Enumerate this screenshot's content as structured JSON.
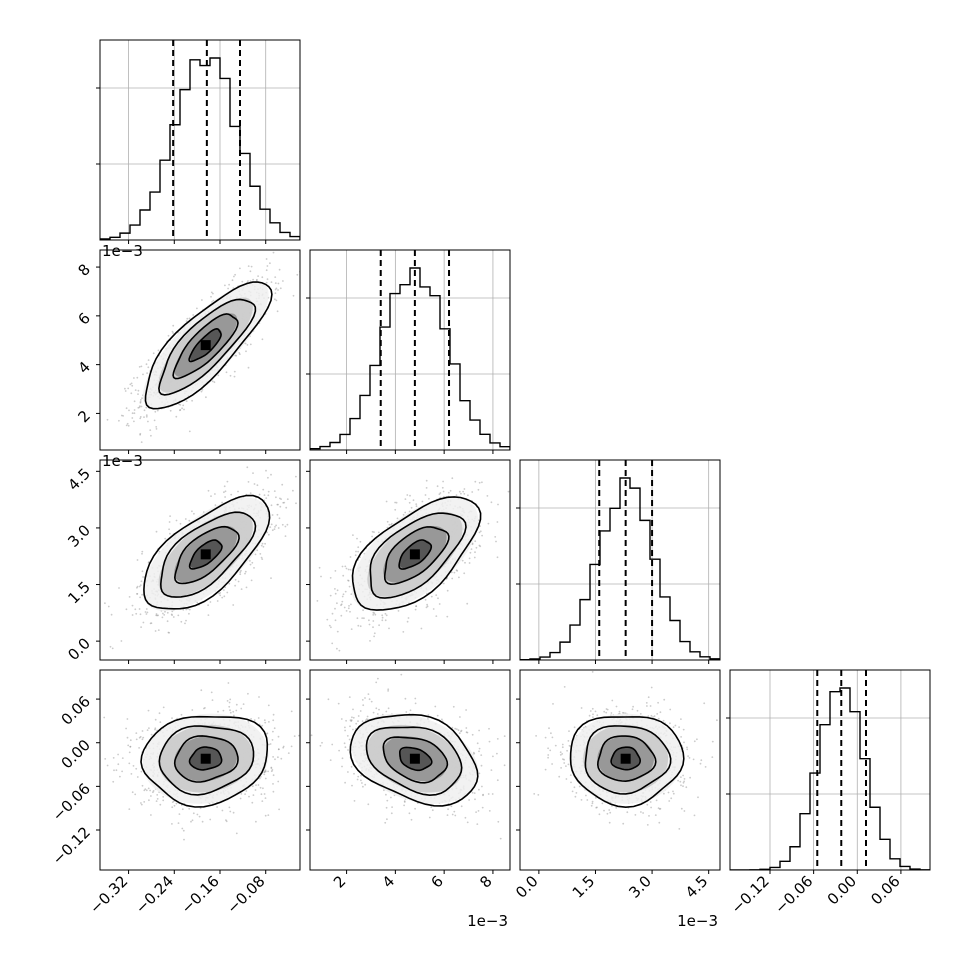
{
  "chart_data": {
    "type": "corner",
    "parameters": [
      {
        "range": [
          -0.37,
          -0.02
        ],
        "ticks": [
          -0.32,
          -0.24,
          -0.16,
          -0.08
        ],
        "tick_labels": [
          "−0.32",
          "−0.24",
          "−0.16",
          "−0.08"
        ],
        "offset_text": "",
        "mean": -0.185,
        "sd": 0.055,
        "quantiles": [
          -0.242,
          -0.183,
          -0.125
        ]
      },
      {
        "range": [
          0.0005,
          0.0087
        ],
        "ticks": [
          0.002,
          0.004,
          0.006,
          0.008
        ],
        "tick_labels": [
          "2",
          "4",
          "6",
          "8"
        ],
        "offset_text": "1e−3",
        "mean": 0.0048,
        "sd": 0.0013,
        "quantiles": [
          0.0034,
          0.0048,
          0.0062
        ]
      },
      {
        "range": [
          -0.0005,
          0.0048
        ],
        "ticks": [
          0.0,
          0.0015,
          0.003,
          0.0045
        ],
        "tick_labels": [
          "0.0",
          "1.5",
          "3.0",
          "4.5"
        ],
        "offset_text": "1e−3",
        "mean": 0.0023,
        "sd": 0.00075,
        "quantiles": [
          0.0016,
          0.0023,
          0.003
        ]
      },
      {
        "range": [
          -0.175,
          0.1
        ],
        "ticks": [
          -0.12,
          -0.06,
          0.0,
          0.06
        ],
        "tick_labels": [
          "−0.12",
          "−0.06",
          "0.00",
          "0.06"
        ],
        "offset_text": "",
        "mean": -0.022,
        "sd": 0.031,
        "quantiles": [
          -0.055,
          -0.022,
          0.012
        ]
      }
    ],
    "correlations": [
      [
        1.0,
        0.8,
        0.65,
        0.1
      ],
      [
        0.8,
        1.0,
        0.6,
        -0.3
      ],
      [
        0.65,
        0.6,
        1.0,
        0.0
      ],
      [
        0.1,
        -0.3,
        0.0,
        1.0
      ]
    ],
    "contour_levels_sigma": [
      0.5,
      1.0,
      1.5,
      2.0
    ],
    "histogram_bins": 20,
    "grid": true,
    "colors": {
      "line": "#000000",
      "grid": "#b0b0b0",
      "points": "#8c8c8c"
    }
  }
}
